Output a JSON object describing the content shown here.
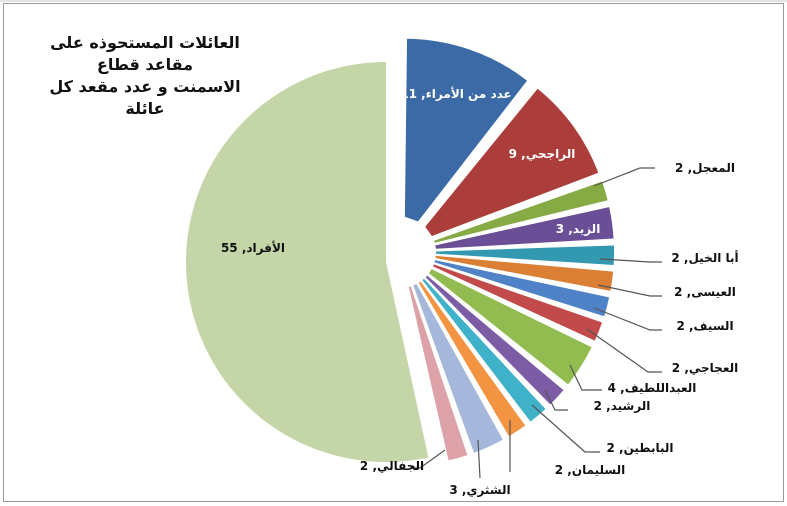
{
  "chart_data": {
    "type": "pie",
    "title": "العائلات المستحوذه على مقاعد قطاع الاسمنت و عدد مقعد كل عائلة",
    "title_lines": [
      "العائلات المستحوذه على مقاعد قطاع",
      "الاسمنت و عدد مقعد كل عائلة"
    ],
    "start_angle_deg": 0,
    "direction": "clockwise",
    "exploded": true,
    "legend": "none",
    "data_labels": "category, value",
    "categories": [
      "عدد من الأمراء",
      "الراجحي",
      "المعجل",
      "الزيد",
      "أبا الخيل",
      "العيسى",
      "السيف",
      "العجاجي",
      "العبداللطيف",
      "الرشيد",
      "البابطين",
      "السليمان",
      "الشثري",
      "الجفالي",
      "الأفراد"
    ],
    "values": [
      11,
      9,
      2,
      3,
      2,
      2,
      2,
      2,
      4,
      2,
      2,
      2,
      3,
      2,
      55
    ],
    "colors": [
      "#3b6aa6",
      "#ab3d3a",
      "#86aa44",
      "#6b4f96",
      "#3399b0",
      "#da7f34",
      "#4f82c6",
      "#c24a4a",
      "#92bb50",
      "#7d5ca6",
      "#3fb1c8",
      "#f39442",
      "#a5b8db",
      "#dda2a8",
      "#c4d6a8"
    ],
    "labels": [
      {
        "text": "عدد من الأمراء, 11",
        "inside": true,
        "color": "#ffffff"
      },
      {
        "text": "الراجحي, 9",
        "inside": true,
        "color": "#ffffff"
      },
      {
        "text": "المعجل, 2",
        "inside": false,
        "color": "#111111"
      },
      {
        "text": "الزيد, 3",
        "inside": true,
        "color": "#ffffff"
      },
      {
        "text": "أبا الخيل, 2",
        "inside": false,
        "color": "#111111"
      },
      {
        "text": "العيسى, 2",
        "inside": false,
        "color": "#111111"
      },
      {
        "text": "السيف, 2",
        "inside": false,
        "color": "#111111"
      },
      {
        "text": "العجاجي, 2",
        "inside": false,
        "color": "#111111"
      },
      {
        "text": "العبداللطيف, 4",
        "inside": false,
        "color": "#111111"
      },
      {
        "text": "الرشيد, 2",
        "inside": false,
        "color": "#111111"
      },
      {
        "text": "البابطين, 2",
        "inside": false,
        "color": "#111111"
      },
      {
        "text": "السليمان, 2",
        "inside": false,
        "color": "#111111"
      },
      {
        "text": "الشثري, 3",
        "inside": false,
        "color": "#111111"
      },
      {
        "text": "الجفالي, 2",
        "inside": false,
        "color": "#111111"
      },
      {
        "text": "الأفراد, 55",
        "inside": true,
        "color": "#111111"
      }
    ]
  }
}
